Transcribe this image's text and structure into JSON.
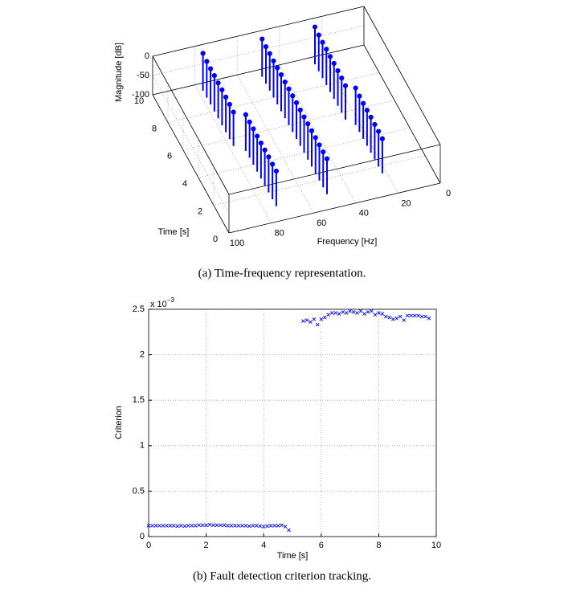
{
  "chart_data": [
    {
      "type": "stem3d",
      "caption": "(a) Time-frequency representation.",
      "zlabel": "Magnitude [dB]",
      "tlabel": "Time [s]",
      "flabel": "Frequency [Hz]",
      "tlim": [
        0,
        10
      ],
      "flim": [
        0,
        100
      ],
      "zlim": [
        -100,
        0
      ],
      "tticks": [
        0,
        2,
        4,
        6,
        8,
        10
      ],
      "fticks": [
        0,
        20,
        40,
        60,
        80,
        100
      ],
      "zticks": [
        0,
        -50,
        -100
      ],
      "color": "#0000ff",
      "grid": true,
      "series": [
        {
          "frequency": 78,
          "t": [
            5.5,
            6,
            6.5,
            7,
            7.5,
            8,
            8.5,
            9,
            9.5
          ],
          "values": [
            -12,
            -10,
            -9,
            -8,
            -8,
            -7,
            -7,
            -6,
            -3
          ]
        },
        {
          "frequency": 74,
          "t": [
            1,
            1.5,
            2,
            2.5,
            3,
            3.5,
            4,
            4.5,
            5
          ],
          "values": [
            -9,
            -9,
            -8,
            -8,
            -8,
            -8,
            -7,
            -7,
            -6
          ]
        },
        {
          "frequency": 50,
          "t": [
            1,
            1.5,
            2,
            2.5,
            3,
            3.5,
            4,
            4.5,
            5,
            5.5,
            6,
            6.5,
            7,
            7.5,
            8,
            8.5,
            9,
            9.5
          ],
          "values": [
            -8,
            -8,
            -8,
            -7,
            -7,
            -7,
            -7,
            -7,
            -6,
            -6,
            -6,
            -6,
            -5,
            -5,
            -5,
            -4,
            -4,
            -2
          ]
        },
        {
          "frequency": 25,
          "t": [
            5.5,
            6,
            6.5,
            7,
            7.5,
            8,
            8.5,
            9,
            9.5
          ],
          "values": [
            -12,
            -10,
            -9,
            -8,
            -8,
            -7,
            -7,
            -6,
            -3
          ]
        },
        {
          "frequency": 22,
          "t": [
            1.5,
            2,
            2.5,
            3,
            3.5,
            4,
            4.5,
            5
          ],
          "values": [
            -10,
            -9,
            -9,
            -8,
            -8,
            -8,
            -7,
            -4
          ]
        }
      ]
    },
    {
      "type": "scatter",
      "caption": "(b) Fault detection criterion tracking.",
      "xlabel": "Time [s]",
      "ylabel": "Criterion",
      "y_scale_label": {
        "base": "x 10",
        "exponent": "−3"
      },
      "xlim": [
        0,
        10
      ],
      "ylim": [
        0,
        2.5
      ],
      "xticks": [
        0,
        2,
        4,
        6,
        8,
        10
      ],
      "yticks": [
        0,
        0.5,
        1,
        1.5,
        2,
        2.5
      ],
      "grid": true,
      "color": "#0000ff",
      "x": [
        0,
        0.125,
        0.25,
        0.375,
        0.5,
        0.625,
        0.75,
        0.875,
        1,
        1.125,
        1.25,
        1.375,
        1.5,
        1.625,
        1.75,
        1.875,
        2,
        2.125,
        2.25,
        2.375,
        2.5,
        2.625,
        2.75,
        2.875,
        3,
        3.125,
        3.25,
        3.375,
        3.5,
        3.625,
        3.75,
        3.875,
        4,
        4.125,
        4.25,
        4.375,
        4.5,
        4.625,
        4.75,
        4.875,
        5.375,
        5.5,
        5.625,
        5.75,
        5.875,
        6,
        6.125,
        6.25,
        6.375,
        6.5,
        6.625,
        6.75,
        6.875,
        7,
        7.125,
        7.25,
        7.375,
        7.5,
        7.625,
        7.75,
        7.875,
        8,
        8.125,
        8.25,
        8.375,
        8.5,
        8.625,
        8.75,
        8.875,
        9,
        9.125,
        9.25,
        9.375,
        9.5,
        9.625,
        9.75
      ],
      "values": [
        0.12,
        0.12,
        0.12,
        0.12,
        0.12,
        0.12,
        0.12,
        0.12,
        0.115,
        0.12,
        0.115,
        0.12,
        0.12,
        0.12,
        0.125,
        0.125,
        0.125,
        0.13,
        0.125,
        0.125,
        0.125,
        0.125,
        0.12,
        0.12,
        0.12,
        0.12,
        0.12,
        0.12,
        0.115,
        0.12,
        0.12,
        0.115,
        0.11,
        0.115,
        0.12,
        0.12,
        0.12,
        0.125,
        0.11,
        0.07,
        2.37,
        2.38,
        2.36,
        2.39,
        2.33,
        2.39,
        2.41,
        2.44,
        2.46,
        2.46,
        2.45,
        2.47,
        2.46,
        2.48,
        2.47,
        2.46,
        2.48,
        2.45,
        2.47,
        2.48,
        2.44,
        2.46,
        2.45,
        2.42,
        2.41,
        2.39,
        2.4,
        2.42,
        2.38,
        2.43,
        2.43,
        2.43,
        2.43,
        2.42,
        2.42,
        2.4
      ]
    }
  ]
}
